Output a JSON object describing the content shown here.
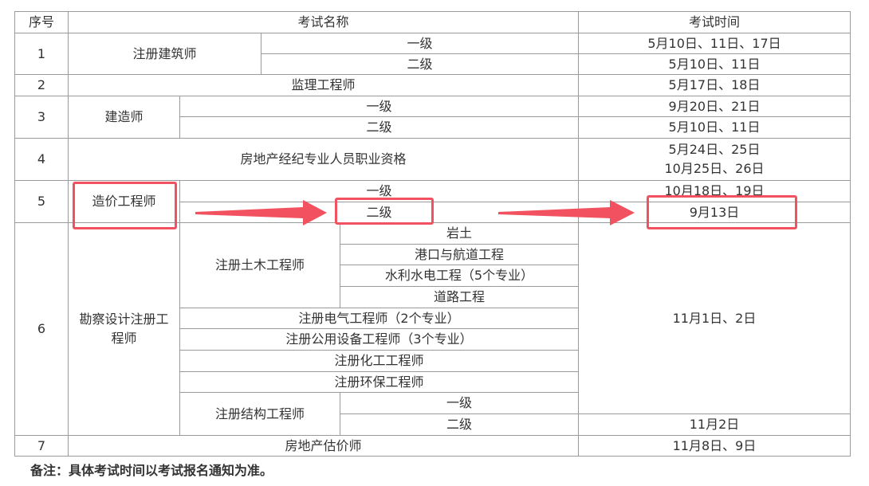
{
  "header": {
    "seq": "序号",
    "name": "考试名称",
    "time": "考试时间"
  },
  "rows": [
    {
      "seq": "1",
      "name": "注册建筑师",
      "levels": [
        "一级",
        "二级"
      ],
      "times": [
        "5月10日、11日、17日",
        "5月10日、11日"
      ]
    },
    {
      "seq": "2",
      "name": "监理工程师",
      "times": [
        "5月17日、18日"
      ]
    },
    {
      "seq": "3",
      "name": "建造师",
      "levels": [
        "一级",
        "二级"
      ],
      "times": [
        "9月20日、21日",
        "5月10日、11日"
      ]
    },
    {
      "seq": "4",
      "name": "房地产经纪专业人员职业资格",
      "times": [
        "5月24日、25日",
        "10月25日、26日"
      ]
    },
    {
      "seq": "5",
      "name": "造价工程师",
      "levels": [
        "一级",
        "二级"
      ],
      "times": [
        "10月18日、19日",
        "9月13日"
      ]
    },
    {
      "seq": "6",
      "name": "勘察设计注册工程师",
      "civil": {
        "name": "注册土木工程师",
        "subs": [
          "岩土",
          "港口与航道工程",
          "水利水电工程（5个专业）",
          "道路工程"
        ]
      },
      "others": [
        "注册电气工程师（2个专业）",
        "注册公用设备工程师（3个专业）",
        "注册化工工程师",
        "注册环保工程师"
      ],
      "structural": {
        "name": "注册结构工程师",
        "levels": [
          "一级",
          "二级"
        ]
      },
      "times": [
        "11月1日、2日",
        "11月2日"
      ]
    },
    {
      "seq": "7",
      "name": "房地产估价师",
      "times": [
        "11月8日、9日"
      ]
    }
  ],
  "note": "备注：具体考试时间以考试报名通知为准。",
  "highlight_color": "#f2525f"
}
